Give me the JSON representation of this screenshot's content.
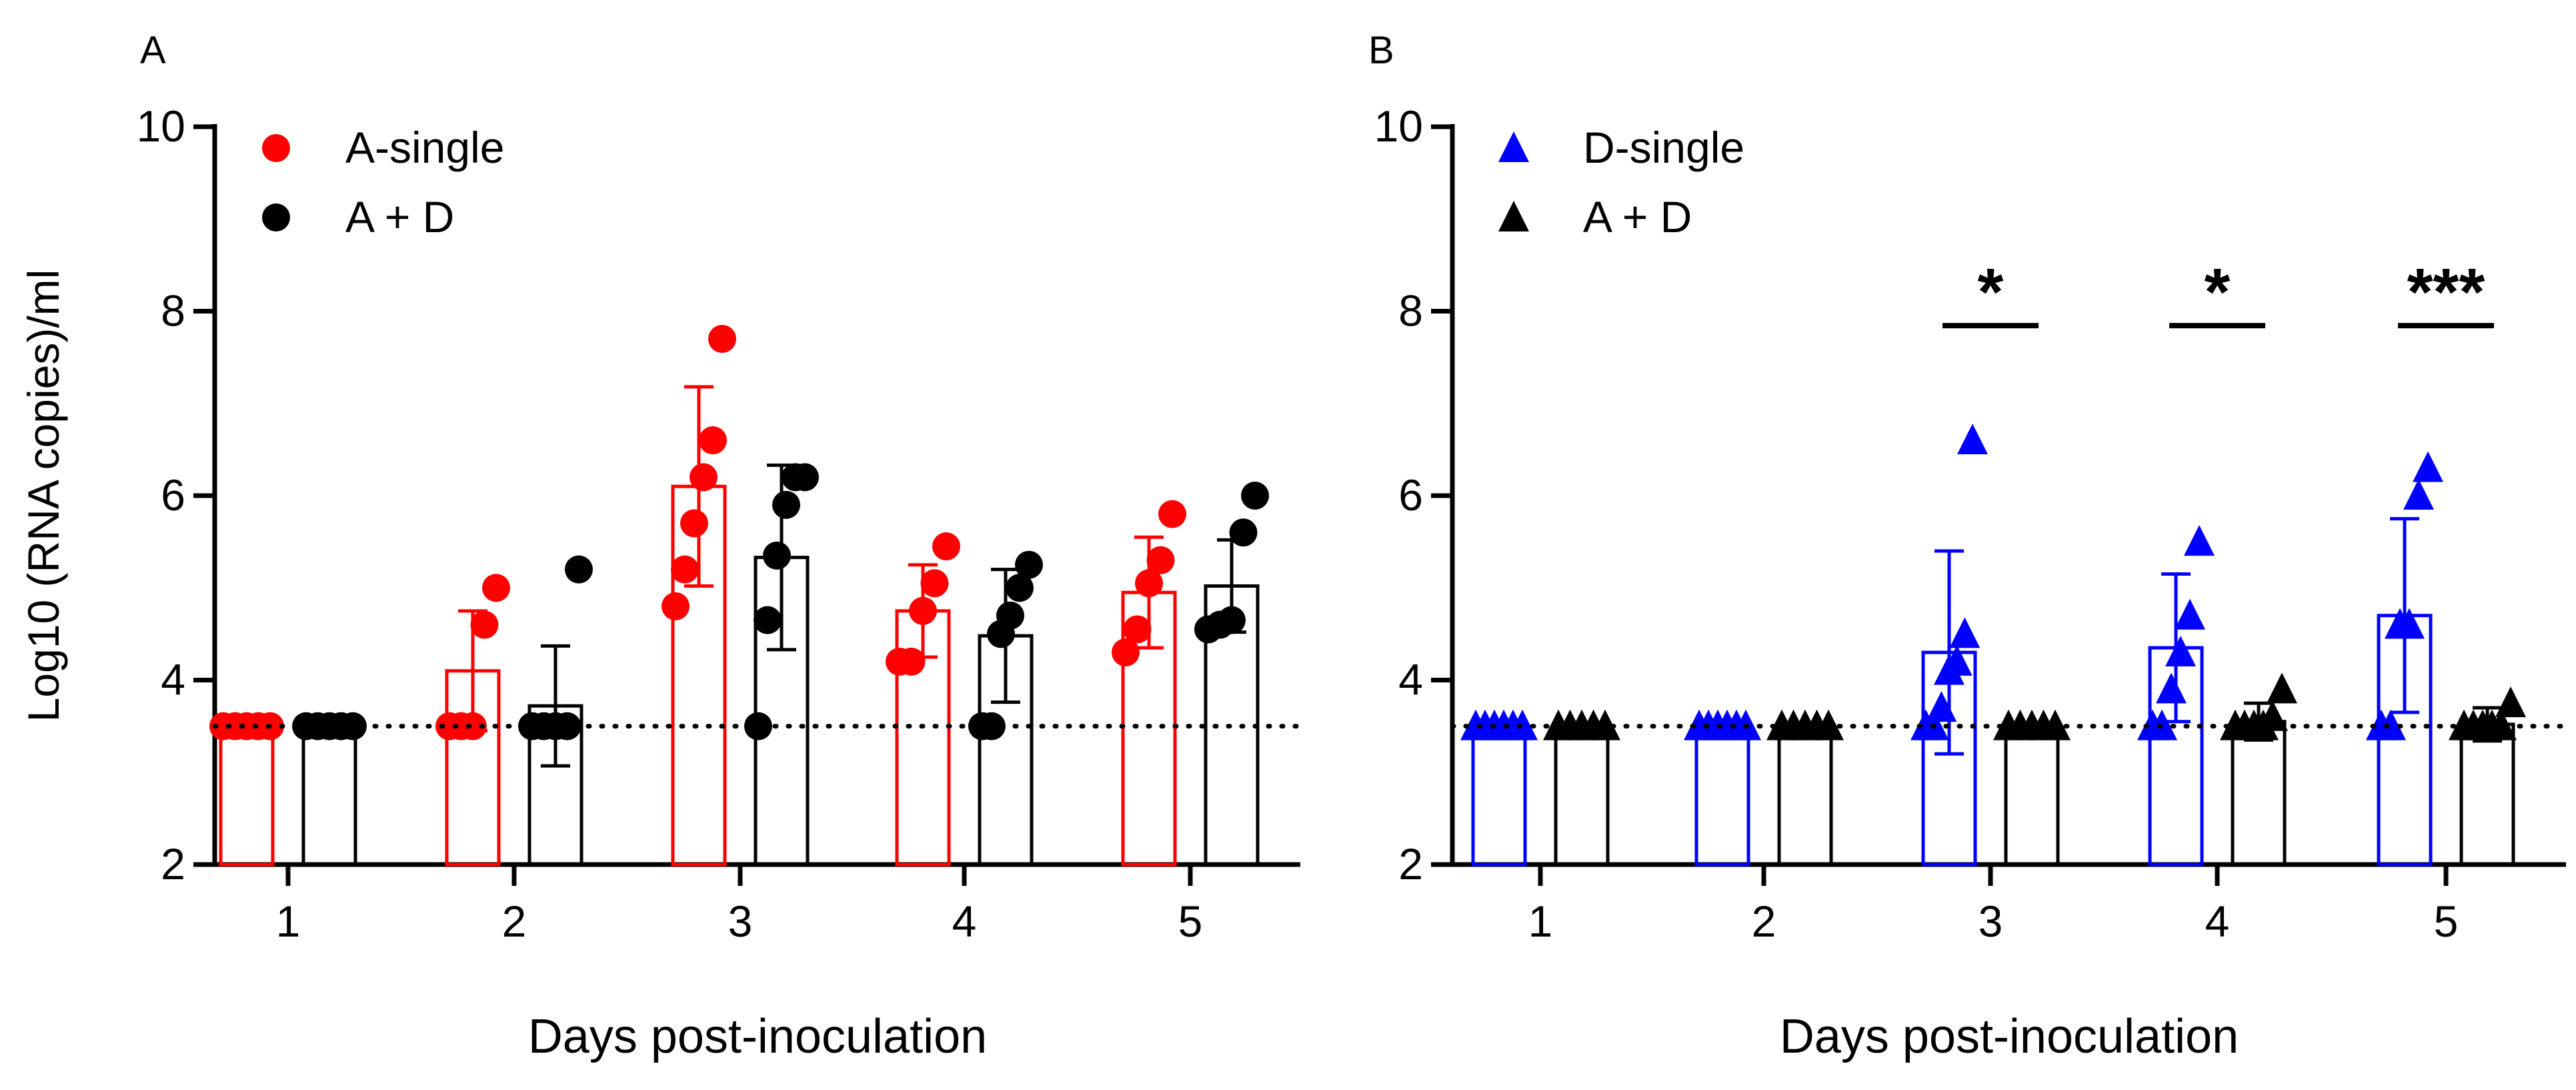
{
  "chart_data": [
    {
      "type": "bar",
      "panel_label": "A",
      "title": "",
      "xlabel": "Days post-inoculation",
      "ylabel": "Log10 (RNA copies)/ml",
      "ylim": [
        2,
        10
      ],
      "yticks": [
        2,
        4,
        6,
        8,
        10
      ],
      "categories": [
        "1",
        "2",
        "3",
        "4",
        "5"
      ],
      "detection_limit": 3.5,
      "marker": "circle",
      "legend_position": "top-left",
      "series": [
        {
          "name": "A-single",
          "color": "#ff0000",
          "values": [
            3.5,
            4.1,
            6.1,
            4.75,
            4.95
          ],
          "sd": [
            0,
            0.65,
            1.08,
            0.5,
            0.6
          ],
          "points": [
            [
              3.5,
              3.5,
              3.5,
              3.5,
              3.5
            ],
            [
              3.5,
              3.5,
              3.5,
              4.6,
              5.0
            ],
            [
              4.8,
              5.2,
              5.7,
              6.2,
              6.6,
              7.7
            ],
            [
              4.2,
              4.2,
              4.75,
              5.05,
              5.45
            ],
            [
              4.3,
              4.55,
              5.05,
              5.3,
              5.8
            ]
          ]
        },
        {
          "name": "A + D",
          "color": "#000000",
          "values": [
            3.5,
            3.72,
            5.33,
            4.48,
            5.02
          ],
          "sd": [
            0,
            0.65,
            1.0,
            0.72,
            0.5
          ],
          "points": [
            [
              3.5,
              3.5,
              3.5,
              3.5,
              3.5
            ],
            [
              3.5,
              3.5,
              3.5,
              3.5,
              5.2
            ],
            [
              3.5,
              4.65,
              5.35,
              5.9,
              6.2,
              6.2
            ],
            [
              3.5,
              3.5,
              4.5,
              4.7,
              5.0,
              5.25
            ],
            [
              4.55,
              4.6,
              4.65,
              5.6,
              6.0
            ]
          ]
        }
      ],
      "significance": []
    },
    {
      "type": "bar",
      "panel_label": "B",
      "title": "",
      "xlabel": "Days post-inoculation",
      "ylabel": "",
      "ylim": [
        2,
        10
      ],
      "yticks": [
        2,
        4,
        6,
        8,
        10
      ],
      "categories": [
        "1",
        "2",
        "3",
        "4",
        "5"
      ],
      "detection_limit": 3.5,
      "marker": "triangle",
      "legend_position": "top-left",
      "series": [
        {
          "name": "D-single",
          "color": "#0000ff",
          "values": [
            3.5,
            3.5,
            4.3,
            4.35,
            4.7
          ],
          "sd": [
            0,
            0,
            1.1,
            0.8,
            1.05
          ],
          "points": [
            [
              3.5,
              3.5,
              3.5,
              3.5,
              3.5,
              3.5
            ],
            [
              3.5,
              3.5,
              3.5,
              3.5,
              3.5,
              3.5
            ],
            [
              3.5,
              3.5,
              3.7,
              4.1,
              4.2,
              4.5,
              6.6
            ],
            [
              3.5,
              3.5,
              3.9,
              4.3,
              4.7,
              5.5
            ],
            [
              3.5,
              3.5,
              4.6,
              4.6,
              6.0,
              6.3
            ]
          ]
        },
        {
          "name": "A + D",
          "color": "#000000",
          "values": [
            3.5,
            3.5,
            3.5,
            3.55,
            3.52
          ],
          "sd": [
            0,
            0,
            0,
            0.2,
            0.18
          ],
          "points": [
            [
              3.5,
              3.5,
              3.5,
              3.5,
              3.5
            ],
            [
              3.5,
              3.5,
              3.5,
              3.5,
              3.5
            ],
            [
              3.5,
              3.5,
              3.5,
              3.5,
              3.5
            ],
            [
              3.5,
              3.5,
              3.5,
              3.5,
              3.6,
              3.9
            ],
            [
              3.5,
              3.5,
              3.5,
              3.5,
              3.5,
              3.75
            ]
          ]
        }
      ],
      "significance": [
        {
          "category": "3",
          "label": "*",
          "y": 7.8
        },
        {
          "category": "4",
          "label": "*",
          "y": 7.8
        },
        {
          "category": "5",
          "label": "***",
          "y": 7.8
        }
      ]
    }
  ]
}
